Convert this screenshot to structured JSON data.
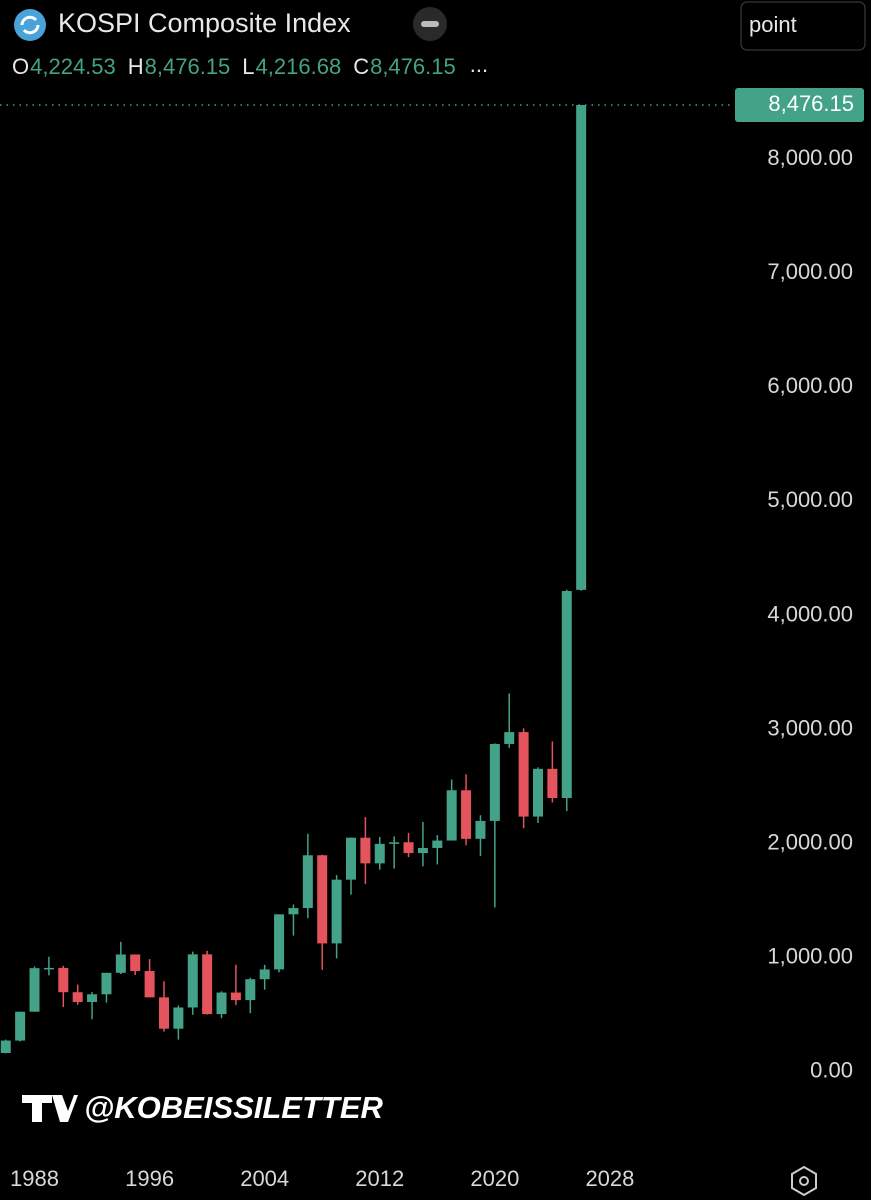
{
  "chart_data": {
    "type": "candlestick",
    "title": "KOSPI Composite Index",
    "header": [
      {
        "key": "O",
        "value": "4,224.53"
      },
      {
        "key": "H",
        "value": "8,476.15"
      },
      {
        "key": "L",
        "value": "4,216.68"
      },
      {
        "key": "C",
        "value": "8,476.15"
      }
    ],
    "header_more": "...",
    "scale_mode": "point",
    "watermark": "@KOBEISSILETTER",
    "last_price_label": "8,476.15",
    "x": [
      1986,
      1987,
      1988,
      1989,
      1990,
      1991,
      1992,
      1993,
      1994,
      1995,
      1996,
      1997,
      1998,
      1999,
      2000,
      2001,
      2002,
      2003,
      2004,
      2005,
      2006,
      2007,
      2008,
      2009,
      2010,
      2011,
      2012,
      2013,
      2014,
      2015,
      2016,
      2017,
      2018,
      2019,
      2020,
      2021,
      2022,
      2023,
      2024,
      2025,
      2026
    ],
    "open": [
      163,
      272,
      525,
      907,
      909,
      696,
      610,
      678,
      866,
      1027,
      882,
      651,
      376,
      562,
      1028,
      504,
      693,
      627,
      810,
      896,
      1379,
      1434,
      1897,
      1124,
      1683,
      2051,
      1826,
      1997,
      2011,
      1916,
      1961,
      2026,
      2467,
      2041,
      2198,
      2873,
      2977,
      2236,
      2655,
      2399,
      4224.53
    ],
    "high": [
      280,
      525,
      922,
      1007,
      928,
      763,
      697,
      866,
      1138,
      1016,
      986,
      792,
      579,
      1052,
      1059,
      704,
      937,
      822,
      936,
      1379,
      1465,
      2085,
      1901,
      1723,
      2052,
      2231,
      2057,
      2063,
      2093,
      2189,
      2073,
      2561,
      2607,
      2248,
      2878,
      3316,
      3010,
      2668,
      2896,
      4226,
      8476.15
    ],
    "low": [
      160,
      264,
      525,
      844,
      566,
      586,
      459,
      605,
      855,
      847,
      651,
      350,
      280,
      498,
      500,
      468,
      584,
      512,
      719,
      870,
      1192,
      1345,
      892,
      992,
      1552,
      1644,
      1770,
      1780,
      1881,
      1800,
      1817,
      2026,
      1985,
      1891,
      1439,
      2839,
      2134,
      2180,
      2360,
      2284,
      4216.68
    ],
    "close": [
      272,
      525,
      907,
      909,
      696,
      610,
      678,
      866,
      1027,
      882,
      651,
      376,
      562,
      1028,
      504,
      693,
      627,
      810,
      896,
      1379,
      1434,
      1897,
      1124,
      1683,
      2051,
      1826,
      1997,
      2011,
      1916,
      1961,
      2026,
      2467,
      2041,
      2198,
      2873,
      2977,
      2236,
      2655,
      2399,
      4214,
      8476.15
    ],
    "up_color": "#43a287",
    "down_color": "#e4545c",
    "xlim": [
      1985.6,
      2036
    ],
    "xticks": [
      1988,
      1996,
      2004,
      2012,
      2020,
      2028
    ],
    "ylim": [
      -600,
      8520
    ],
    "yticks": [
      {
        "value": 0,
        "label": "0.00"
      },
      {
        "value": 1000,
        "label": "1,000.00"
      },
      {
        "value": 2000,
        "label": "2,000.00"
      },
      {
        "value": 3000,
        "label": "3,000.00"
      },
      {
        "value": 4000,
        "label": "4,000.00"
      },
      {
        "value": 5000,
        "label": "5,000.00"
      },
      {
        "value": 6000,
        "label": "6,000.00"
      },
      {
        "value": 7000,
        "label": "7,000.00"
      },
      {
        "value": 8000,
        "label": "8,000.00"
      }
    ]
  }
}
